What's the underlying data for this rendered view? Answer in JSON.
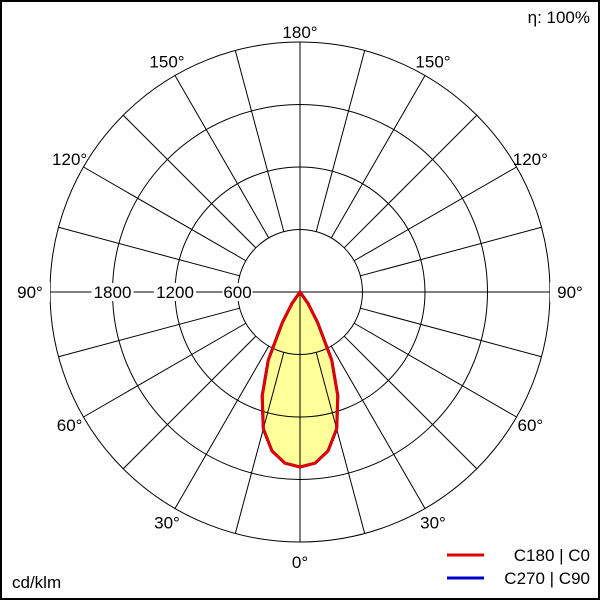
{
  "chart_data": {
    "type": "polar",
    "title": "",
    "efficiency_label": "η: 100%",
    "unit_label": "cd/klm",
    "radial_ticks": [
      600,
      1200,
      1800
    ],
    "radial_max": 2400,
    "angle_ticks": [
      {
        "angle": 0,
        "label": "0°"
      },
      {
        "angle": 30,
        "label": "30°"
      },
      {
        "angle": 60,
        "label": "60°"
      },
      {
        "angle": 90,
        "label": "90°"
      },
      {
        "angle": 120,
        "label": "120°"
      },
      {
        "angle": 150,
        "label": "150°"
      },
      {
        "angle": 180,
        "label": "180°"
      }
    ],
    "spoke_step_deg": 15,
    "grid": true,
    "legend_position": "bottom-right",
    "fill_color": "#ffff99",
    "series": [
      {
        "name": "C270 | C90",
        "color": "#0000cc",
        "angles": [
          0,
          5,
          10,
          15,
          20,
          25,
          30,
          35,
          40
        ],
        "values": [
          1680,
          1650,
          1550,
          1360,
          1060,
          720,
          340,
          130,
          0
        ]
      },
      {
        "name": "C180 | C0",
        "color": "#e00000",
        "angles": [
          0,
          5,
          10,
          15,
          20,
          25,
          30,
          35,
          40
        ],
        "values": [
          1680,
          1650,
          1550,
          1360,
          1060,
          720,
          340,
          130,
          0
        ]
      }
    ]
  }
}
